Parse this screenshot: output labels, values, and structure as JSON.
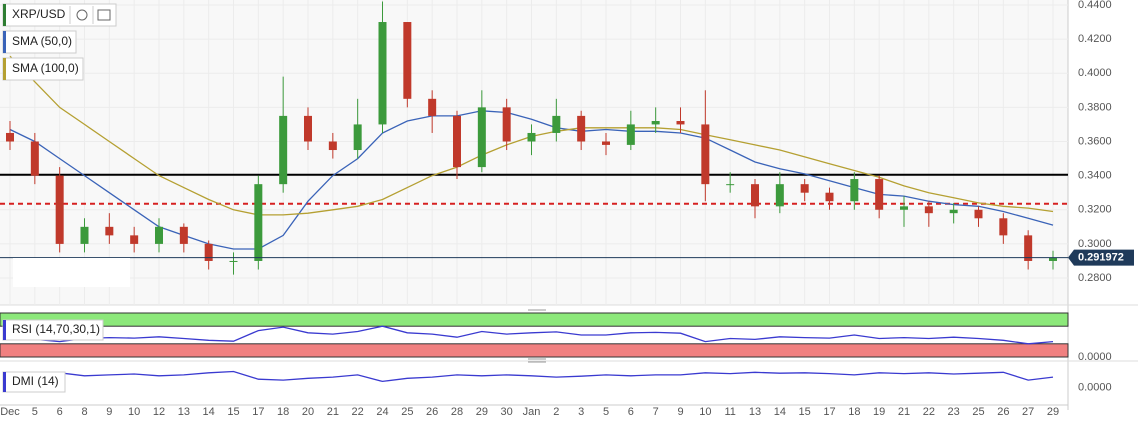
{
  "chart_data": {
    "type": "candlestick",
    "title": "XRP/USD",
    "categories": [
      "Dec",
      "5",
      "6",
      "8",
      "9",
      "10",
      "12",
      "13",
      "14",
      "15",
      "17",
      "18",
      "20",
      "21",
      "22",
      "24",
      "25",
      "26",
      "28",
      "29",
      "30",
      "Jan",
      "2",
      "3",
      "5",
      "6",
      "7",
      "9",
      "10",
      "11",
      "13",
      "14",
      "15",
      "17",
      "18",
      "19",
      "21",
      "22",
      "23",
      "25",
      "26",
      "27",
      "29"
    ],
    "open": [
      0.365,
      0.36,
      0.34,
      0.3,
      0.31,
      0.305,
      0.3,
      0.31,
      0.3,
      0.29,
      0.29,
      0.335,
      0.375,
      0.36,
      0.355,
      0.37,
      0.43,
      0.385,
      0.375,
      0.345,
      0.38,
      0.36,
      0.365,
      0.375,
      0.36,
      0.358,
      0.37,
      0.372,
      0.37,
      0.335,
      0.335,
      0.322,
      0.335,
      0.33,
      0.325,
      0.338,
      0.32,
      0.322,
      0.318,
      0.32,
      0.315,
      0.305,
      0.29
    ],
    "high": [
      0.372,
      0.365,
      0.345,
      0.315,
      0.318,
      0.31,
      0.315,
      0.312,
      0.302,
      0.295,
      0.34,
      0.398,
      0.38,
      0.365,
      0.385,
      0.442,
      0.43,
      0.39,
      0.378,
      0.39,
      0.385,
      0.37,
      0.385,
      0.378,
      0.365,
      0.378,
      0.38,
      0.38,
      0.39,
      0.342,
      0.338,
      0.342,
      0.338,
      0.333,
      0.342,
      0.34,
      0.328,
      0.325,
      0.324,
      0.322,
      0.318,
      0.308,
      0.296
    ],
    "low": [
      0.355,
      0.335,
      0.295,
      0.295,
      0.3,
      0.295,
      0.295,
      0.295,
      0.285,
      0.282,
      0.285,
      0.33,
      0.355,
      0.35,
      0.35,
      0.365,
      0.38,
      0.365,
      0.338,
      0.342,
      0.355,
      0.352,
      0.36,
      0.355,
      0.352,
      0.355,
      0.365,
      0.365,
      0.325,
      0.33,
      0.315,
      0.318,
      0.325,
      0.32,
      0.32,
      0.315,
      0.31,
      0.31,
      0.312,
      0.31,
      0.3,
      0.285,
      0.285
    ],
    "close": [
      0.36,
      0.34,
      0.3,
      0.31,
      0.305,
      0.3,
      0.31,
      0.3,
      0.29,
      0.29,
      0.335,
      0.375,
      0.36,
      0.355,
      0.37,
      0.43,
      0.385,
      0.375,
      0.345,
      0.38,
      0.36,
      0.365,
      0.375,
      0.36,
      0.358,
      0.37,
      0.372,
      0.37,
      0.335,
      0.335,
      0.322,
      0.335,
      0.33,
      0.325,
      0.338,
      0.32,
      0.322,
      0.318,
      0.32,
      0.315,
      0.305,
      0.29,
      0.292
    ],
    "up_color": "#3c9a3c",
    "down_color": "#c0392b",
    "series": [
      {
        "name": "SMA (50,0)",
        "color": "#3a63b8",
        "values": [
          0.367,
          0.36,
          0.35,
          0.34,
          0.33,
          0.32,
          0.31,
          0.305,
          0.3,
          0.297,
          0.297,
          0.305,
          0.325,
          0.34,
          0.35,
          0.365,
          0.372,
          0.375,
          0.375,
          0.378,
          0.377,
          0.373,
          0.368,
          0.366,
          0.367,
          0.366,
          0.366,
          0.365,
          0.362,
          0.355,
          0.348,
          0.344,
          0.341,
          0.337,
          0.333,
          0.329,
          0.328,
          0.325,
          0.323,
          0.322,
          0.319,
          0.315,
          0.311
        ]
      },
      {
        "name": "SMA (100,0)",
        "color": "#b5a032",
        "values": [
          0.41,
          0.395,
          0.38,
          0.37,
          0.36,
          0.35,
          0.34,
          0.333,
          0.326,
          0.32,
          0.317,
          0.317,
          0.318,
          0.32,
          0.322,
          0.326,
          0.333,
          0.34,
          0.345,
          0.352,
          0.358,
          0.363,
          0.366,
          0.368,
          0.368,
          0.368,
          0.368,
          0.367,
          0.364,
          0.361,
          0.358,
          0.355,
          0.351,
          0.347,
          0.343,
          0.339,
          0.334,
          0.33,
          0.327,
          0.324,
          0.322,
          0.321,
          0.319
        ]
      }
    ],
    "hlines": [
      {
        "value": 0.3405,
        "color": "#000000",
        "dash": false
      },
      {
        "value": 0.3235,
        "color": "#d62020",
        "dash": true
      }
    ],
    "last_price": 0.291972,
    "ylim": [
      0.2642,
      0.4429
    ],
    "yticks": [
      {
        "value": 0.28,
        "label": "0.2800"
      },
      {
        "value": 0.3,
        "label": "0.3000"
      },
      {
        "value": 0.32,
        "label": "0.3200"
      },
      {
        "value": 0.34,
        "label": "0.3400"
      },
      {
        "value": 0.36,
        "label": "0.3600"
      },
      {
        "value": 0.38,
        "label": "0.3800"
      },
      {
        "value": 0.4,
        "label": "0.4000"
      },
      {
        "value": 0.42,
        "label": "0.4200"
      },
      {
        "value": 0.44,
        "label": "0.4400"
      }
    ],
    "grid": true,
    "rsi": {
      "name": "RSI (14,70,30,1)",
      "color": "#3a3ad0",
      "ylim": [
        0,
        100
      ],
      "upper": 70,
      "lower": 30,
      "yticks": [
        {
          "value": 0,
          "label": "0.0000"
        }
      ],
      "values": [
        45,
        40,
        35,
        42,
        44,
        43,
        46,
        42,
        38,
        36,
        60,
        68,
        55,
        52,
        58,
        70,
        55,
        52,
        45,
        58,
        52,
        55,
        57,
        50,
        50,
        55,
        56,
        54,
        35,
        42,
        40,
        46,
        44,
        43,
        50,
        42,
        44,
        42,
        45,
        42,
        38,
        30,
        35
      ]
    },
    "dmi": {
      "name": "DMI (14)",
      "color": "#3a3ad0",
      "ylim": [
        -40,
        60
      ],
      "yticks": [
        {
          "value": 0,
          "label": "0.0000"
        }
      ],
      "values": [
        30,
        25,
        35,
        28,
        30,
        32,
        28,
        30,
        35,
        38,
        20,
        18,
        22,
        25,
        30,
        15,
        22,
        25,
        30,
        28,
        30,
        28,
        25,
        27,
        30,
        28,
        30,
        30,
        35,
        33,
        36,
        34,
        35,
        33,
        30,
        35,
        33,
        35,
        32,
        34,
        36,
        18,
        25
      ]
    }
  }
}
